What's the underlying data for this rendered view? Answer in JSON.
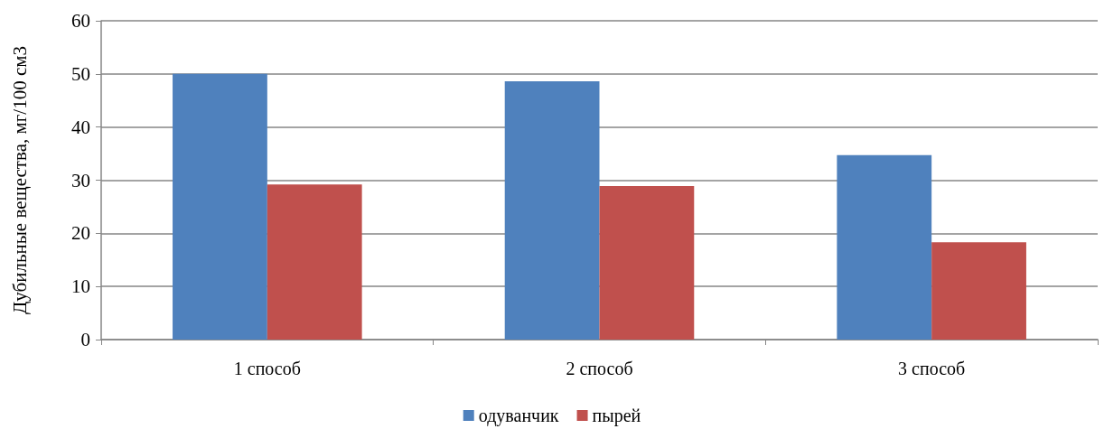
{
  "chart_data": {
    "type": "bar",
    "ylabel": "Дубильные вещества, мг/100 см3",
    "categories": [
      "1 способ",
      "2 способ",
      "3 способ"
    ],
    "series": [
      {
        "name": "одуванчик",
        "color": "#4f81bd",
        "values": [
          50,
          48.6,
          34.7
        ]
      },
      {
        "name": "пырей",
        "color": "#c0504d",
        "values": [
          29.2,
          28.9,
          18.3
        ]
      }
    ],
    "ylim": [
      0,
      60
    ],
    "yticks": [
      0,
      10,
      20,
      30,
      40,
      50,
      60
    ],
    "grid": "y",
    "legend": "bottom"
  }
}
